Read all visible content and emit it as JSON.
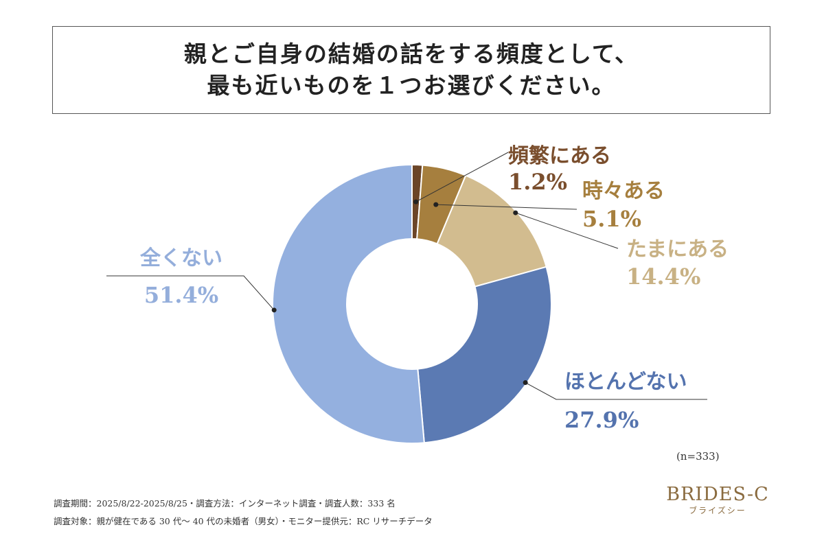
{
  "title": {
    "line1": "親とご自身の結婚の話をする頻度として、",
    "line2": "最も近いものを１つお選びください。"
  },
  "chart_data": {
    "type": "pie",
    "variant": "donut",
    "start": "top",
    "direction": "clockwise",
    "slices": [
      {
        "label": "頻繁にある",
        "value": 1.2,
        "display": "1.2%",
        "color": "#6b4528",
        "label_color": "#7a4e2d"
      },
      {
        "label": "時々ある",
        "value": 5.1,
        "display": "5.1%",
        "color": "#a67f3e",
        "label_color": "#a67f3e"
      },
      {
        "label": "たまにある",
        "value": 14.4,
        "display": "14.4%",
        "color": "#d2bc8f",
        "label_color": "#c8b184"
      },
      {
        "label": "ほとんどない",
        "value": 27.9,
        "display": "27.9%",
        "color": "#5b7ab3",
        "label_color": "#5473ae"
      },
      {
        "label": "全くない",
        "value": 51.4,
        "display": "51.4%",
        "color": "#94b0df",
        "label_color": "#94aedb"
      }
    ]
  },
  "sample_note": "(n=333)",
  "footnotes": {
    "line1": "調査期間：2025/8/22-2025/8/25・調査方法：インターネット調査・調査人数：333 名",
    "line2": "調査対象：親が健在である 30 代～ 40 代の未婚者（男女）・モニター提供元：RC リサーチデータ"
  },
  "brand": {
    "name": "BRIDES-C",
    "sub": "ブライズシー",
    "color": "#8a6b3f"
  }
}
